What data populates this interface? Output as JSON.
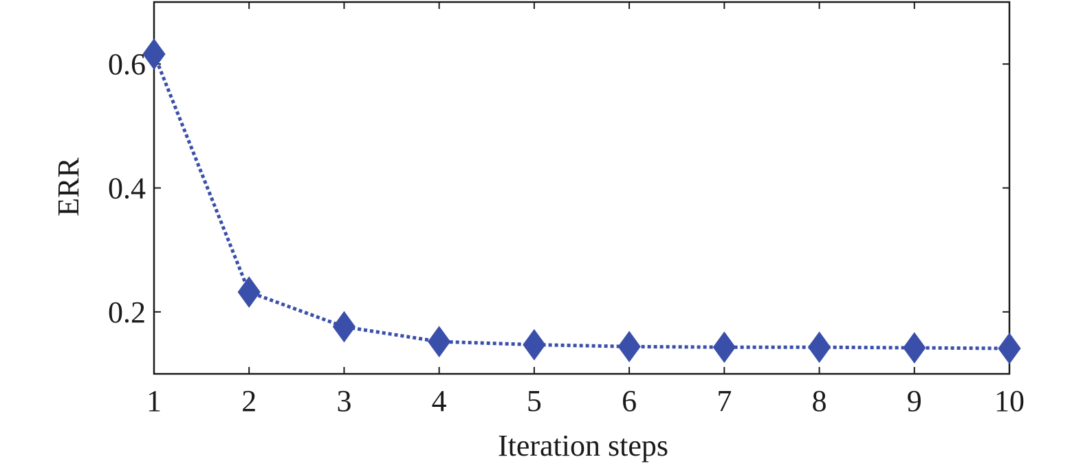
{
  "chart_data": {
    "type": "line",
    "title": "",
    "xlabel": "Iteration steps",
    "ylabel": "ERR",
    "xlim": [
      1,
      10
    ],
    "ylim": [
      0.1,
      0.7
    ],
    "xticks": [
      1,
      2,
      3,
      4,
      5,
      6,
      7,
      8,
      9,
      10
    ],
    "xtick_labels": [
      "1",
      "2",
      "3",
      "4",
      "5",
      "6",
      "7",
      "8",
      "9",
      "10"
    ],
    "yticks": [
      0.2,
      0.4,
      0.6
    ],
    "ytick_labels": [
      "0.2",
      "0.4",
      "0.6"
    ],
    "grid": false,
    "legend": false,
    "series": [
      {
        "x": [
          1,
          2,
          3,
          4,
          5,
          6,
          7,
          8,
          9,
          10
        ],
        "values": [
          0.616,
          0.232,
          0.176,
          0.152,
          0.147,
          0.144,
          0.143,
          0.143,
          0.142,
          0.141
        ],
        "color": "#3a4faa",
        "line_style": "dotted",
        "marker": "diamond"
      }
    ]
  }
}
